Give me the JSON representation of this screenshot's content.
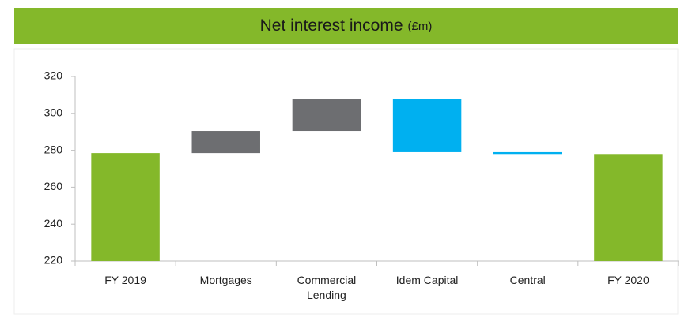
{
  "chart_data": {
    "type": "waterfall",
    "title": "Net interest income",
    "unit": "(£m)",
    "categories": [
      "FY 2019",
      "Mortgages",
      "Commercial Lending",
      "Idem Capital",
      "Central",
      "FY 2020"
    ],
    "values": [
      278.5,
      12,
      17.5,
      -29,
      -1,
      278
    ],
    "measure": [
      "total",
      "relative",
      "relative",
      "relative",
      "relative",
      "total"
    ],
    "colors": {
      "total": "#84b82a",
      "increase": "#6d6e71",
      "decrease": "#00b0f0"
    },
    "ylim": [
      220,
      320
    ],
    "yticks": [
      220,
      240,
      260,
      280,
      300,
      320
    ],
    "grid": false
  }
}
